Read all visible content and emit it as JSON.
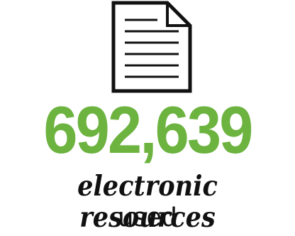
{
  "stat": {
    "value": "692,639",
    "label_script": "electronic resources",
    "label_plain": "used"
  },
  "icons": {
    "document": "document-icon"
  },
  "colors": {
    "accent": "#6cb33f",
    "text": "#111111",
    "background": "#ffffff"
  }
}
